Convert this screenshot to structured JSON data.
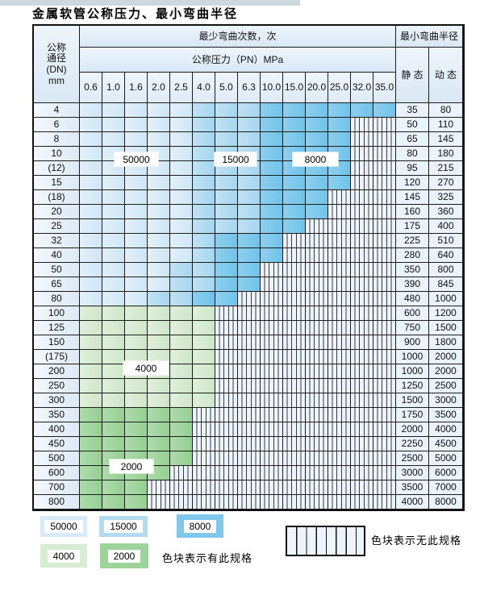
{
  "title": "金属软管公称压力、最小弯曲半径",
  "colors": {
    "blue_50000": "#d7eaf8",
    "blue_15000": "#b2dbf2",
    "blue_8000": "#7fc8ec",
    "green_4000": "#d8ecd4",
    "green_2000": "#9ed49c",
    "hatch_background": "#eef4fc",
    "header_background": "#e3eef8",
    "grid_line": "#1c1c1c",
    "top_strip": "#ccd8e0"
  },
  "table": {
    "header": {
      "dn_lines": [
        "公称",
        "通径",
        "(DN)",
        "mm"
      ],
      "bend_cycles": "最少弯曲次数，次",
      "pressure": "公称压力（PN）MPa",
      "pressures": [
        "0.6",
        "1.0",
        "1.6",
        "2.0",
        "2.5",
        "4.0",
        "5.0",
        "6.3",
        "10.0",
        "15.0",
        "20.0",
        "25.0",
        "32.0",
        "35.0"
      ],
      "min_bend_radius": "最小弯曲半径",
      "static": "静 态",
      "dynamic": "动 态"
    },
    "zone_legend_meaning": {
      "a": "50000",
      "b": "15000",
      "c": "8000",
      "d": "4000",
      "e": "2000",
      "h": "无此规格"
    },
    "rows": [
      {
        "dn": "4",
        "static": "35",
        "dynamic": "80",
        "zones": [
          "a",
          "a",
          "a",
          "a",
          "a",
          "b",
          "b",
          "b",
          "c",
          "c",
          "c",
          "c",
          "c",
          "c"
        ]
      },
      {
        "dn": "6",
        "static": "50",
        "dynamic": "110",
        "zones": [
          "a",
          "a",
          "a",
          "a",
          "a",
          "b",
          "b",
          "b",
          "c",
          "c",
          "c",
          "c",
          "h",
          "h"
        ]
      },
      {
        "dn": "8",
        "static": "65",
        "dynamic": "145",
        "zones": [
          "a",
          "a",
          "a",
          "a",
          "a",
          "b",
          "b",
          "b",
          "c",
          "c",
          "c",
          "c",
          "h",
          "h"
        ]
      },
      {
        "dn": "10",
        "static": "80",
        "dynamic": "180",
        "zones": [
          "a",
          "a",
          "a",
          "a",
          "a",
          "b",
          "b",
          "b",
          "c",
          "c",
          "c",
          "c",
          "h",
          "h"
        ]
      },
      {
        "dn": "(12)",
        "static": "95",
        "dynamic": "215",
        "zones": [
          "a",
          "a",
          "a",
          "a",
          "a",
          "b",
          "b",
          "b",
          "c",
          "c",
          "c",
          "c",
          "h",
          "h"
        ]
      },
      {
        "dn": "15",
        "static": "120",
        "dynamic": "270",
        "zones": [
          "a",
          "a",
          "a",
          "a",
          "a",
          "b",
          "b",
          "b",
          "c",
          "c",
          "c",
          "c",
          "h",
          "h"
        ]
      },
      {
        "dn": "(18)",
        "static": "145",
        "dynamic": "325",
        "zones": [
          "a",
          "a",
          "a",
          "a",
          "a",
          "b",
          "b",
          "b",
          "c",
          "c",
          "c",
          "h",
          "h",
          "h"
        ]
      },
      {
        "dn": "20",
        "static": "160",
        "dynamic": "360",
        "zones": [
          "a",
          "a",
          "a",
          "a",
          "a",
          "b",
          "b",
          "b",
          "c",
          "c",
          "c",
          "h",
          "h",
          "h"
        ]
      },
      {
        "dn": "25",
        "static": "175",
        "dynamic": "400",
        "zones": [
          "a",
          "a",
          "a",
          "a",
          "a",
          "b",
          "b",
          "b",
          "c",
          "c",
          "h",
          "h",
          "h",
          "h"
        ]
      },
      {
        "dn": "32",
        "static": "225",
        "dynamic": "510",
        "zones": [
          "a",
          "a",
          "a",
          "a",
          "a",
          "b",
          "c",
          "c",
          "c",
          "h",
          "h",
          "h",
          "h",
          "h"
        ]
      },
      {
        "dn": "40",
        "static": "280",
        "dynamic": "640",
        "zones": [
          "a",
          "a",
          "a",
          "a",
          "a",
          "b",
          "c",
          "c",
          "c",
          "h",
          "h",
          "h",
          "h",
          "h"
        ]
      },
      {
        "dn": "50",
        "static": "350",
        "dynamic": "800",
        "zones": [
          "a",
          "a",
          "a",
          "a",
          "b",
          "b",
          "c",
          "c",
          "h",
          "h",
          "h",
          "h",
          "h",
          "h"
        ]
      },
      {
        "dn": "65",
        "static": "390",
        "dynamic": "845",
        "zones": [
          "a",
          "a",
          "a",
          "a",
          "b",
          "b",
          "c",
          "c",
          "h",
          "h",
          "h",
          "h",
          "h",
          "h"
        ]
      },
      {
        "dn": "80",
        "static": "480",
        "dynamic": "1000",
        "zones": [
          "a",
          "a",
          "a",
          "b",
          "b",
          "c",
          "c",
          "h",
          "h",
          "h",
          "h",
          "h",
          "h",
          "h"
        ]
      },
      {
        "dn": "100",
        "static": "600",
        "dynamic": "1200",
        "zones": [
          "d",
          "d",
          "d",
          "d",
          "d",
          "d",
          "h",
          "h",
          "h",
          "h",
          "h",
          "h",
          "h",
          "h"
        ]
      },
      {
        "dn": "125",
        "static": "750",
        "dynamic": "1500",
        "zones": [
          "d",
          "d",
          "d",
          "d",
          "d",
          "d",
          "h",
          "h",
          "h",
          "h",
          "h",
          "h",
          "h",
          "h"
        ]
      },
      {
        "dn": "150",
        "static": "900",
        "dynamic": "1800",
        "zones": [
          "d",
          "d",
          "d",
          "d",
          "d",
          "d",
          "h",
          "h",
          "h",
          "h",
          "h",
          "h",
          "h",
          "h"
        ]
      },
      {
        "dn": "(175)",
        "static": "1000",
        "dynamic": "2000",
        "zones": [
          "d",
          "d",
          "d",
          "d",
          "d",
          "d",
          "h",
          "h",
          "h",
          "h",
          "h",
          "h",
          "h",
          "h"
        ]
      },
      {
        "dn": "200",
        "static": "1000",
        "dynamic": "2000",
        "zones": [
          "d",
          "d",
          "d",
          "d",
          "d",
          "d",
          "h",
          "h",
          "h",
          "h",
          "h",
          "h",
          "h",
          "h"
        ]
      },
      {
        "dn": "250",
        "static": "1250",
        "dynamic": "2500",
        "zones": [
          "d",
          "d",
          "d",
          "d",
          "d",
          "d",
          "h",
          "h",
          "h",
          "h",
          "h",
          "h",
          "h",
          "h"
        ]
      },
      {
        "dn": "300",
        "static": "1500",
        "dynamic": "3000",
        "zones": [
          "d",
          "d",
          "d",
          "d",
          "d",
          "d",
          "h",
          "h",
          "h",
          "h",
          "h",
          "h",
          "h",
          "h"
        ]
      },
      {
        "dn": "350",
        "static": "1750",
        "dynamic": "3500",
        "zones": [
          "e",
          "e",
          "e",
          "e",
          "e",
          "h",
          "h",
          "h",
          "h",
          "h",
          "h",
          "h",
          "h",
          "h"
        ]
      },
      {
        "dn": "400",
        "static": "2000",
        "dynamic": "4000",
        "zones": [
          "e",
          "e",
          "e",
          "e",
          "e",
          "h",
          "h",
          "h",
          "h",
          "h",
          "h",
          "h",
          "h",
          "h"
        ]
      },
      {
        "dn": "450",
        "static": "2250",
        "dynamic": "4500",
        "zones": [
          "e",
          "e",
          "e",
          "e",
          "e",
          "h",
          "h",
          "h",
          "h",
          "h",
          "h",
          "h",
          "h",
          "h"
        ]
      },
      {
        "dn": "500",
        "static": "2500",
        "dynamic": "5000",
        "zones": [
          "e",
          "e",
          "e",
          "e",
          "e",
          "h",
          "h",
          "h",
          "h",
          "h",
          "h",
          "h",
          "h",
          "h"
        ]
      },
      {
        "dn": "600",
        "static": "3000",
        "dynamic": "6000",
        "zones": [
          "e",
          "e",
          "e",
          "e",
          "h",
          "h",
          "h",
          "h",
          "h",
          "h",
          "h",
          "h",
          "h",
          "h"
        ]
      },
      {
        "dn": "700",
        "static": "3500",
        "dynamic": "7000",
        "zones": [
          "e",
          "e",
          "e",
          "h",
          "h",
          "h",
          "h",
          "h",
          "h",
          "h",
          "h",
          "h",
          "h",
          "h"
        ]
      },
      {
        "dn": "800",
        "static": "4000",
        "dynamic": "8000",
        "zones": [
          "e",
          "e",
          "e",
          "h",
          "h",
          "h",
          "h",
          "h",
          "h",
          "h",
          "h",
          "h",
          "h",
          "h"
        ]
      }
    ],
    "overlay_labels": {
      "l50000": "50000",
      "l15000": "15000",
      "l8000": "8000",
      "l4000": "4000",
      "l2000": "2000"
    }
  },
  "legend": {
    "swatches": [
      {
        "label": "50000",
        "color": "#d7eaf8"
      },
      {
        "label": "15000",
        "color": "#b2dbf2"
      },
      {
        "label": "8000",
        "color": "#7fc8ec"
      },
      {
        "label": "4000",
        "color": "#d8ecd4"
      },
      {
        "label": "2000",
        "color": "#9ed49c"
      }
    ],
    "available_note": "色块表示有此规格",
    "unavailable_note": "色块表示无此规格"
  }
}
